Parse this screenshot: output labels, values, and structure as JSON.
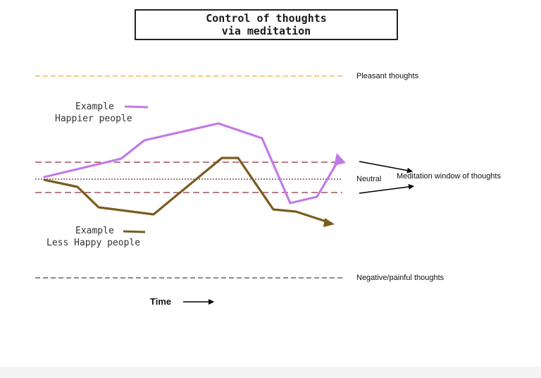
{
  "title": {
    "line1": "Control of thoughts",
    "line2": "via meditation"
  },
  "zones": {
    "pleasant": "Pleasant thoughts",
    "neutral": "Neutral",
    "negative": "Negative/painful thoughts",
    "meditation_window": "Meditation window of thoughts"
  },
  "legend": {
    "happier": {
      "example": "Example",
      "name": "Happier people"
    },
    "less_happy": {
      "example": "Example",
      "name": "Less Happy people"
    }
  },
  "x_axis": {
    "label": "Time"
  },
  "colors": {
    "happier": "#c27ae6",
    "less_happy": "#7a5c1e",
    "pleasant_line": "#f2b560",
    "window_lines": "#a0525e",
    "neutral_line": "#8a4a6a",
    "negative_line": "#666666"
  }
}
